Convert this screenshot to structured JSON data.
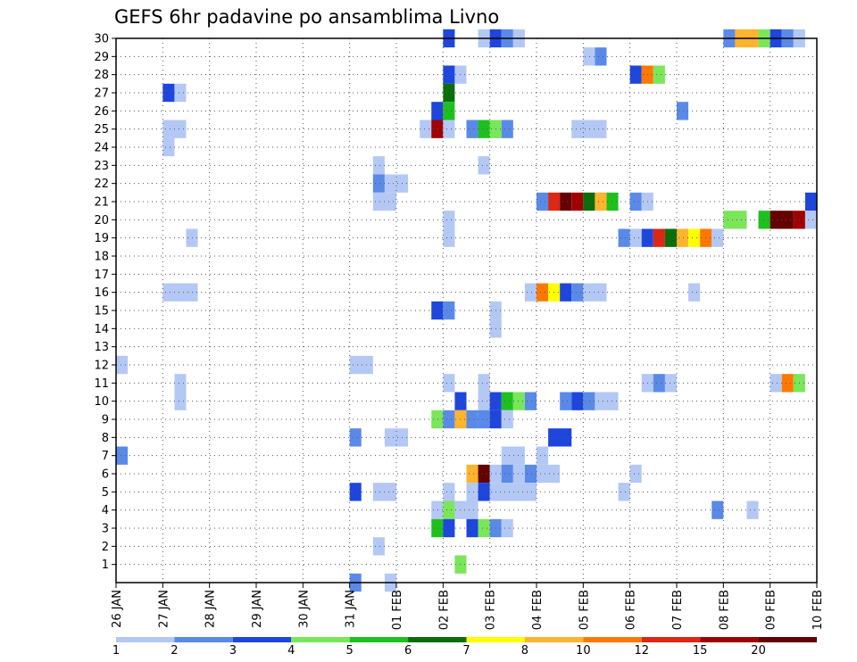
{
  "chart_data": {
    "type": "heatmap",
    "title": "GEFS 6hr padavine po ansamblima Livno",
    "xlabel": "",
    "ylabel": "",
    "x_tick_labels": [
      "26 JAN",
      "27 JAN",
      "28 JAN",
      "29 JAN",
      "30 JAN",
      "31 JAN",
      "01 FEB",
      "02 FEB",
      "03 FEB",
      "04 FEB",
      "05 FEB",
      "06 FEB",
      "07 FEB",
      "08 FEB",
      "09 FEB",
      "10 FEB"
    ],
    "y_tick_labels": [
      "1",
      "2",
      "3",
      "4",
      "5",
      "6",
      "7",
      "8",
      "9",
      "10",
      "11",
      "12",
      "13",
      "14",
      "15",
      "16",
      "17",
      "18",
      "19",
      "20",
      "21",
      "22",
      "23",
      "24",
      "25",
      "26",
      "27",
      "28",
      "29",
      "30"
    ],
    "x_range_days": [
      0,
      15
    ],
    "y_range": [
      0,
      30
    ],
    "grid": true,
    "colorbar": {
      "labels": [
        "1",
        "2",
        "3",
        "4",
        "5",
        "6",
        "7",
        "8",
        "10",
        "12",
        "15",
        "20"
      ],
      "colors": [
        "#b4c8f5",
        "#5a8ae8",
        "#1e46dc",
        "#7ae65a",
        "#1ec01e",
        "#0a6e0a",
        "#ffff00",
        "#ffb42d",
        "#ff7800",
        "#dc2814",
        "#a00000",
        "#640000"
      ]
    },
    "cells": [
      {
        "member": 30,
        "x": [
          7.0,
          7.25
        ],
        "class": 3
      },
      {
        "member": 30,
        "x": [
          7.75,
          8.0
        ],
        "class": 1
      },
      {
        "member": 30,
        "x": [
          8.0,
          8.25
        ],
        "class": 3
      },
      {
        "member": 30,
        "x": [
          8.25,
          8.5
        ],
        "class": 2
      },
      {
        "member": 30,
        "x": [
          8.5,
          8.75
        ],
        "class": 1
      },
      {
        "member": 30,
        "x": [
          13.0,
          13.25
        ],
        "class": 2
      },
      {
        "member": 30,
        "x": [
          13.25,
          13.75
        ],
        "class": 8
      },
      {
        "member": 30,
        "x": [
          13.75,
          14.0
        ],
        "class": 4
      },
      {
        "member": 30,
        "x": [
          14.0,
          14.25
        ],
        "class": 3
      },
      {
        "member": 30,
        "x": [
          14.25,
          14.5
        ],
        "class": 2
      },
      {
        "member": 30,
        "x": [
          14.5,
          14.75
        ],
        "class": 1
      },
      {
        "member": 29,
        "x": [
          10.0,
          10.25
        ],
        "class": 1
      },
      {
        "member": 29,
        "x": [
          10.25,
          10.5
        ],
        "class": 2
      },
      {
        "member": 28,
        "x": [
          7.0,
          7.25
        ],
        "class": 3
      },
      {
        "member": 28,
        "x": [
          7.25,
          7.5
        ],
        "class": 1
      },
      {
        "member": 28,
        "x": [
          11.0,
          11.25
        ],
        "class": 3
      },
      {
        "member": 28,
        "x": [
          11.25,
          11.5
        ],
        "class": 9
      },
      {
        "member": 28,
        "x": [
          11.5,
          11.75
        ],
        "class": 4
      },
      {
        "member": 27,
        "x": [
          1.0,
          1.25
        ],
        "class": 3
      },
      {
        "member": 27,
        "x": [
          1.25,
          1.5
        ],
        "class": 1
      },
      {
        "member": 27,
        "x": [
          7.0,
          7.25
        ],
        "class": 6
      },
      {
        "member": 26,
        "x": [
          6.75,
          7.0
        ],
        "class": 3
      },
      {
        "member": 26,
        "x": [
          7.0,
          7.25
        ],
        "class": 5
      },
      {
        "member": 26,
        "x": [
          12.0,
          12.25
        ],
        "class": 2
      },
      {
        "member": 25,
        "x": [
          1.0,
          1.5
        ],
        "class": 1
      },
      {
        "member": 25,
        "x": [
          6.5,
          6.75
        ],
        "class": 1
      },
      {
        "member": 25,
        "x": [
          6.75,
          7.0
        ],
        "class": 11
      },
      {
        "member": 25,
        "x": [
          7.0,
          7.25
        ],
        "class": 1
      },
      {
        "member": 25,
        "x": [
          7.5,
          7.75
        ],
        "class": 2
      },
      {
        "member": 25,
        "x": [
          7.75,
          8.0
        ],
        "class": 5
      },
      {
        "member": 25,
        "x": [
          8.0,
          8.25
        ],
        "class": 4
      },
      {
        "member": 25,
        "x": [
          8.25,
          8.5
        ],
        "class": 2
      },
      {
        "member": 25,
        "x": [
          9.75,
          10.5
        ],
        "class": 1
      },
      {
        "member": 24,
        "x": [
          1.0,
          1.25
        ],
        "class": 1
      },
      {
        "member": 23,
        "x": [
          5.5,
          5.75
        ],
        "class": 1
      },
      {
        "member": 23,
        "x": [
          7.75,
          8.0
        ],
        "class": 1
      },
      {
        "member": 22,
        "x": [
          5.5,
          5.75
        ],
        "class": 2
      },
      {
        "member": 22,
        "x": [
          5.75,
          6.25
        ],
        "class": 1
      },
      {
        "member": 21,
        "x": [
          5.5,
          6.0
        ],
        "class": 1
      },
      {
        "member": 21,
        "x": [
          9.0,
          9.25
        ],
        "class": 2
      },
      {
        "member": 21,
        "x": [
          9.25,
          9.5
        ],
        "class": 10
      },
      {
        "member": 21,
        "x": [
          9.5,
          9.75
        ],
        "class": 12
      },
      {
        "member": 21,
        "x": [
          9.75,
          10.0
        ],
        "class": 11
      },
      {
        "member": 21,
        "x": [
          10.0,
          10.25
        ],
        "class": 6
      },
      {
        "member": 21,
        "x": [
          10.25,
          10.5
        ],
        "class": 8
      },
      {
        "member": 21,
        "x": [
          10.5,
          10.75
        ],
        "class": 5
      },
      {
        "member": 21,
        "x": [
          11.0,
          11.25
        ],
        "class": 2
      },
      {
        "member": 21,
        "x": [
          11.25,
          11.5
        ],
        "class": 1
      },
      {
        "member": 21,
        "x": [
          14.75,
          15.0
        ],
        "class": 3
      },
      {
        "member": 20,
        "x": [
          7.0,
          7.25
        ],
        "class": 1
      },
      {
        "member": 20,
        "x": [
          13.0,
          13.5
        ],
        "class": 4
      },
      {
        "member": 20,
        "x": [
          13.75,
          14.0
        ],
        "class": 5
      },
      {
        "member": 20,
        "x": [
          14.0,
          14.5
        ],
        "class": 12
      },
      {
        "member": 20,
        "x": [
          14.5,
          14.75
        ],
        "class": 11
      },
      {
        "member": 20,
        "x": [
          14.75,
          15.0
        ],
        "class": 1
      },
      {
        "member": 19,
        "x": [
          1.5,
          1.75
        ],
        "class": 1
      },
      {
        "member": 19,
        "x": [
          7.0,
          7.25
        ],
        "class": 1
      },
      {
        "member": 19,
        "x": [
          10.75,
          11.0
        ],
        "class": 2
      },
      {
        "member": 19,
        "x": [
          11.0,
          11.25
        ],
        "class": 1
      },
      {
        "member": 19,
        "x": [
          11.25,
          11.5
        ],
        "class": 3
      },
      {
        "member": 19,
        "x": [
          11.5,
          11.75
        ],
        "class": 10
      },
      {
        "member": 19,
        "x": [
          11.75,
          12.0
        ],
        "class": 6
      },
      {
        "member": 19,
        "x": [
          12.0,
          12.25
        ],
        "class": 8
      },
      {
        "member": 19,
        "x": [
          12.25,
          12.5
        ],
        "class": 7
      },
      {
        "member": 19,
        "x": [
          12.5,
          12.75
        ],
        "class": 9
      },
      {
        "member": 19,
        "x": [
          12.75,
          13.0
        ],
        "class": 1
      },
      {
        "member": 16,
        "x": [
          1.0,
          1.75
        ],
        "class": 1
      },
      {
        "member": 16,
        "x": [
          8.75,
          9.0
        ],
        "class": 1
      },
      {
        "member": 16,
        "x": [
          9.0,
          9.25
        ],
        "class": 9
      },
      {
        "member": 16,
        "x": [
          9.25,
          9.5
        ],
        "class": 7
      },
      {
        "member": 16,
        "x": [
          9.5,
          9.75
        ],
        "class": 3
      },
      {
        "member": 16,
        "x": [
          9.75,
          10.0
        ],
        "class": 2
      },
      {
        "member": 16,
        "x": [
          10.0,
          10.5
        ],
        "class": 1
      },
      {
        "member": 16,
        "x": [
          12.25,
          12.5
        ],
        "class": 1
      },
      {
        "member": 15,
        "x": [
          6.75,
          7.0
        ],
        "class": 3
      },
      {
        "member": 15,
        "x": [
          7.0,
          7.25
        ],
        "class": 2
      },
      {
        "member": 15,
        "x": [
          8.0,
          8.25
        ],
        "class": 1
      },
      {
        "member": 14,
        "x": [
          8.0,
          8.25
        ],
        "class": 1
      },
      {
        "member": 12,
        "x": [
          0.0,
          0.25
        ],
        "class": 1
      },
      {
        "member": 12,
        "x": [
          5.0,
          5.5
        ],
        "class": 1
      },
      {
        "member": 11,
        "x": [
          1.25,
          1.5
        ],
        "class": 1
      },
      {
        "member": 11,
        "x": [
          7.0,
          7.25
        ],
        "class": 1
      },
      {
        "member": 11,
        "x": [
          7.75,
          8.0
        ],
        "class": 1
      },
      {
        "member": 11,
        "x": [
          11.25,
          11.5
        ],
        "class": 1
      },
      {
        "member": 11,
        "x": [
          11.5,
          11.75
        ],
        "class": 2
      },
      {
        "member": 11,
        "x": [
          11.75,
          12.0
        ],
        "class": 1
      },
      {
        "member": 11,
        "x": [
          14.0,
          14.25
        ],
        "class": 1
      },
      {
        "member": 11,
        "x": [
          14.25,
          14.5
        ],
        "class": 9
      },
      {
        "member": 11,
        "x": [
          14.5,
          14.75
        ],
        "class": 4
      },
      {
        "member": 10,
        "x": [
          1.25,
          1.5
        ],
        "class": 1
      },
      {
        "member": 10,
        "x": [
          7.25,
          7.5
        ],
        "class": 3
      },
      {
        "member": 10,
        "x": [
          7.75,
          8.0
        ],
        "class": 1
      },
      {
        "member": 10,
        "x": [
          8.0,
          8.25
        ],
        "class": 3
      },
      {
        "member": 10,
        "x": [
          8.25,
          8.5
        ],
        "class": 5
      },
      {
        "member": 10,
        "x": [
          8.5,
          8.75
        ],
        "class": 4
      },
      {
        "member": 10,
        "x": [
          8.75,
          9.0
        ],
        "class": 2
      },
      {
        "member": 10,
        "x": [
          9.5,
          9.75
        ],
        "class": 2
      },
      {
        "member": 10,
        "x": [
          9.75,
          10.0
        ],
        "class": 3
      },
      {
        "member": 10,
        "x": [
          10.0,
          10.25
        ],
        "class": 2
      },
      {
        "member": 10,
        "x": [
          10.25,
          10.75
        ],
        "class": 1
      },
      {
        "member": 9,
        "x": [
          6.75,
          7.0
        ],
        "class": 4
      },
      {
        "member": 9,
        "x": [
          7.0,
          7.25
        ],
        "class": 2
      },
      {
        "member": 9,
        "x": [
          7.25,
          7.5
        ],
        "class": 8
      },
      {
        "member": 9,
        "x": [
          7.5,
          7.75
        ],
        "class": 2
      },
      {
        "member": 9,
        "x": [
          7.75,
          8.0
        ],
        "class": 2
      },
      {
        "member": 9,
        "x": [
          8.0,
          8.25
        ],
        "class": 3
      },
      {
        "member": 9,
        "x": [
          8.25,
          8.5
        ],
        "class": 1
      },
      {
        "member": 8,
        "x": [
          5.0,
          5.25
        ],
        "class": 2
      },
      {
        "member": 8,
        "x": [
          5.75,
          6.25
        ],
        "class": 1
      },
      {
        "member": 8,
        "x": [
          9.25,
          9.75
        ],
        "class": 3
      },
      {
        "member": 7,
        "x": [
          0.0,
          0.25
        ],
        "class": 2
      },
      {
        "member": 7,
        "x": [
          8.25,
          8.75
        ],
        "class": 1
      },
      {
        "member": 7,
        "x": [
          9.0,
          9.25
        ],
        "class": 1
      },
      {
        "member": 6,
        "x": [
          7.5,
          7.75
        ],
        "class": 8
      },
      {
        "member": 6,
        "x": [
          7.75,
          8.0
        ],
        "class": 12
      },
      {
        "member": 6,
        "x": [
          8.0,
          8.25
        ],
        "class": 1
      },
      {
        "member": 6,
        "x": [
          8.25,
          8.5
        ],
        "class": 2
      },
      {
        "member": 6,
        "x": [
          8.5,
          8.75
        ],
        "class": 1
      },
      {
        "member": 6,
        "x": [
          8.75,
          9.0
        ],
        "class": 2
      },
      {
        "member": 6,
        "x": [
          9.0,
          9.5
        ],
        "class": 1
      },
      {
        "member": 6,
        "x": [
          11.0,
          11.25
        ],
        "class": 1
      },
      {
        "member": 5,
        "x": [
          5.0,
          5.25
        ],
        "class": 3
      },
      {
        "member": 5,
        "x": [
          5.5,
          6.0
        ],
        "class": 1
      },
      {
        "member": 5,
        "x": [
          7.0,
          7.25
        ],
        "class": 1
      },
      {
        "member": 5,
        "x": [
          7.5,
          7.75
        ],
        "class": 1
      },
      {
        "member": 5,
        "x": [
          7.75,
          8.0
        ],
        "class": 3
      },
      {
        "member": 5,
        "x": [
          8.0,
          9.0
        ],
        "class": 1
      },
      {
        "member": 5,
        "x": [
          10.75,
          11.0
        ],
        "class": 1
      },
      {
        "member": 4,
        "x": [
          6.75,
          7.0
        ],
        "class": 1
      },
      {
        "member": 4,
        "x": [
          7.0,
          7.25
        ],
        "class": 4
      },
      {
        "member": 4,
        "x": [
          7.25,
          7.75
        ],
        "class": 1
      },
      {
        "member": 4,
        "x": [
          12.75,
          13.0
        ],
        "class": 2
      },
      {
        "member": 4,
        "x": [
          13.5,
          13.75
        ],
        "class": 1
      },
      {
        "member": 3,
        "x": [
          6.75,
          7.0
        ],
        "class": 5
      },
      {
        "member": 3,
        "x": [
          7.0,
          7.25
        ],
        "class": 3
      },
      {
        "member": 3,
        "x": [
          7.5,
          7.75
        ],
        "class": 3
      },
      {
        "member": 3,
        "x": [
          7.75,
          8.0
        ],
        "class": 4
      },
      {
        "member": 3,
        "x": [
          8.0,
          8.25
        ],
        "class": 2
      },
      {
        "member": 3,
        "x": [
          8.25,
          8.5
        ],
        "class": 1
      },
      {
        "member": 2,
        "x": [
          5.5,
          5.75
        ],
        "class": 1
      },
      {
        "member": 1,
        "x": [
          7.25,
          7.5
        ],
        "class": 4
      },
      {
        "member": 0,
        "x": [
          5.0,
          5.25
        ],
        "class": 2
      },
      {
        "member": 0,
        "x": [
          5.75,
          6.0
        ],
        "class": 1
      }
    ]
  }
}
